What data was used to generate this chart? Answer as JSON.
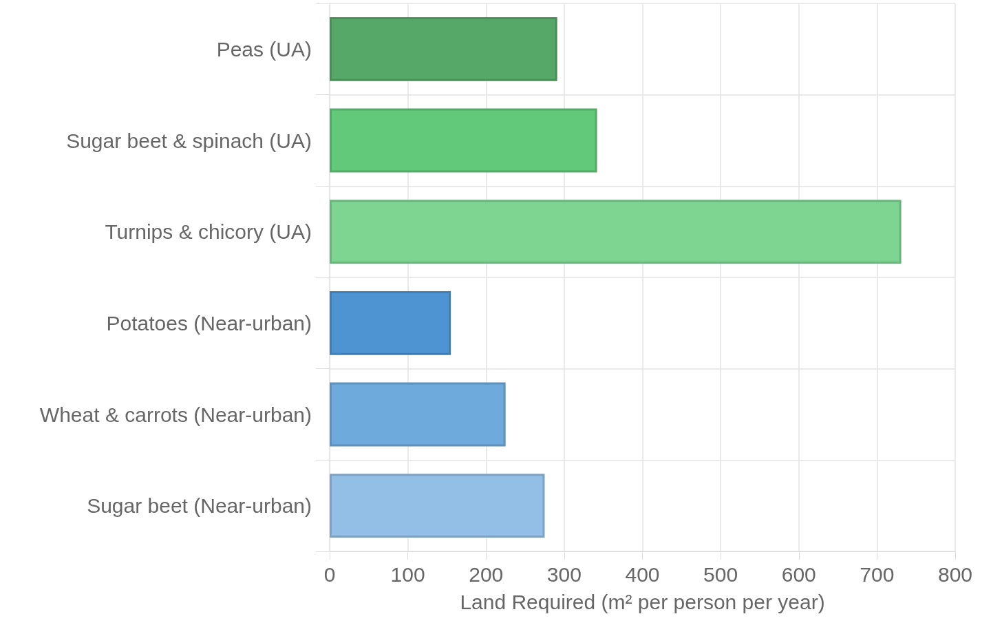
{
  "chart_data": {
    "type": "bar",
    "orientation": "horizontal",
    "categories": [
      "Peas (UA)",
      "Sugar beet & spinach (UA)",
      "Turnips & chicory (UA)",
      "Potatoes (Near-urban)",
      "Wheat & carrots (Near-urban)",
      "Sugar beet (Near-urban)"
    ],
    "values": [
      291,
      342,
      731,
      155,
      225,
      275
    ],
    "colors": [
      "#55a868",
      "#63c97a",
      "#7dd591",
      "#4e94d3",
      "#6eaadc",
      "#93bfe6"
    ],
    "xlabel": "Land Required (m² per person per year)",
    "xlim": [
      0,
      800
    ],
    "xticks": [
      0,
      100,
      200,
      300,
      400,
      500,
      600,
      700,
      800
    ],
    "grid": true
  }
}
